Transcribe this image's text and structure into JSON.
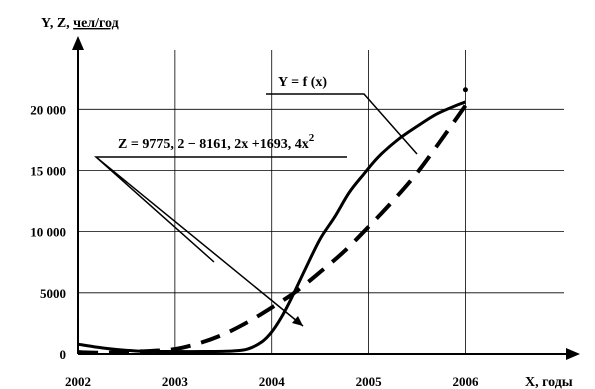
{
  "chart_data": {
    "type": "line",
    "ylabel_main": "Y, Z, ",
    "ylabel_unit": "чел/год",
    "xlabel": "X, годы",
    "x_ticks": [
      "2002",
      "2003",
      "2004",
      "2005",
      "2006"
    ],
    "y_ticks": [
      "0",
      "5000",
      "10 000",
      "15 000",
      "20 000"
    ],
    "xlim": [
      2002,
      2007.1
    ],
    "ylim": [
      0,
      25500
    ],
    "grid": true,
    "series": [
      {
        "name": "Y = f (x)",
        "style": "solid",
        "x": [
          2002,
          2002.3,
          2002.6,
          2003.0,
          2003.3,
          2003.6,
          2003.75,
          2003.9,
          2004.0,
          2004.1,
          2004.2,
          2004.35,
          2004.5,
          2004.65,
          2004.8,
          2004.95,
          2005.1,
          2005.3,
          2005.5,
          2005.7,
          2005.9,
          2006.0
        ],
        "y": [
          800,
          450,
          250,
          200,
          200,
          250,
          400,
          1000,
          1800,
          3000,
          4500,
          7000,
          9400,
          11200,
          13200,
          14700,
          16100,
          17500,
          18600,
          19600,
          20300,
          20600
        ]
      },
      {
        "name": "Z = 9775, 2 − 8161, 2x +1693, 4x²",
        "style": "dashed",
        "x": [
          2002.0,
          2002.25,
          2002.5,
          2002.75,
          2003.0,
          2003.25,
          2003.5,
          2003.75,
          2004.0,
          2004.25,
          2004.5,
          2004.75,
          2005.0,
          2005.25,
          2005.5,
          2005.75,
          2006.0
        ],
        "y": [
          150,
          100,
          180,
          250,
          400,
          880,
          1600,
          2600,
          3800,
          5100,
          6700,
          8400,
          10400,
          12500,
          14800,
          17500,
          20300
        ]
      }
    ],
    "point": {
      "x": 2006.0,
      "y": 21600
    },
    "annotations": [
      {
        "text": "Y = f (x)",
        "target_series": 0
      },
      {
        "text_main": "Z = 9775, 2 − 8161, 2x +1693, 4x",
        "text_sup": "2",
        "target_series": 1
      }
    ]
  }
}
